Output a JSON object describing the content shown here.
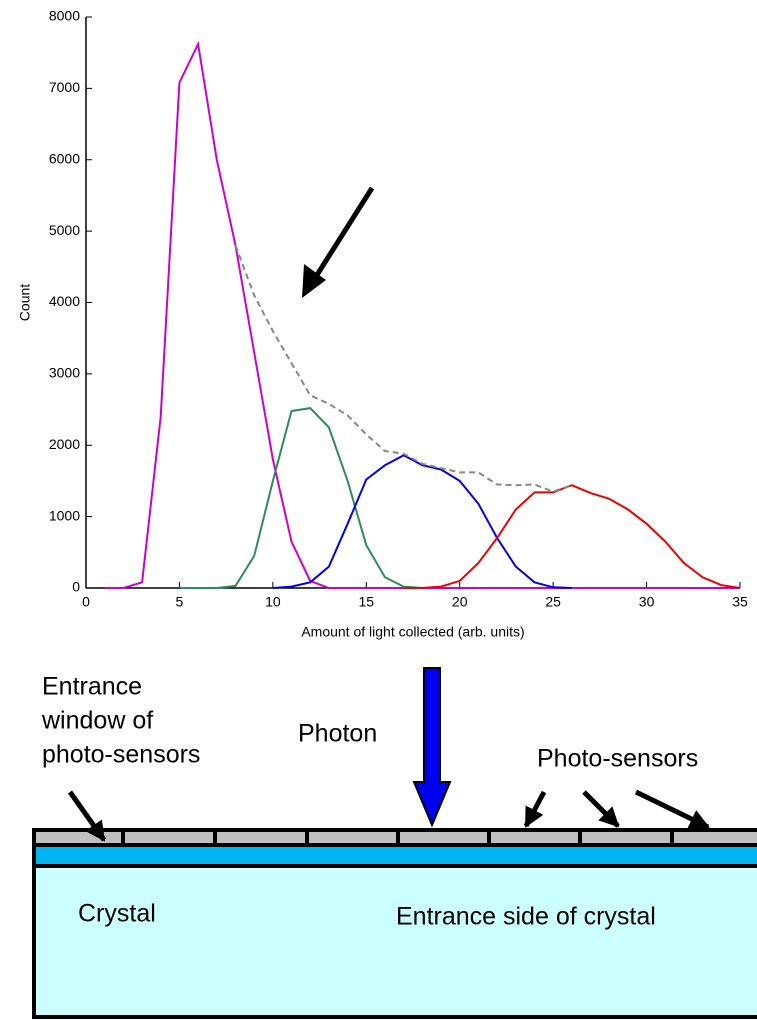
{
  "chart_data": {
    "type": "line",
    "x_label": "Amount of light collected (arb. units)",
    "y_label": "Count",
    "x": [
      1,
      2,
      3,
      4,
      5,
      6,
      7,
      8,
      9,
      10,
      11,
      12,
      13,
      14,
      15,
      16,
      17,
      18,
      19,
      20,
      21,
      22,
      23,
      24,
      25,
      26,
      27,
      28,
      29,
      30,
      31,
      32,
      33,
      34,
      35
    ],
    "series": [
      {
        "color": "#cc00cc",
        "values": [
          0,
          0,
          80,
          2400,
          7080,
          7620,
          6000,
          4800,
          3300,
          1800,
          650,
          100,
          0,
          0,
          0,
          0,
          0,
          0,
          0,
          0,
          0,
          0,
          0,
          0,
          0,
          0,
          0,
          0,
          0,
          0,
          0,
          0,
          0,
          0,
          0
        ]
      },
      {
        "color": "#2e8b57",
        "values": [
          null,
          null,
          null,
          null,
          0,
          0,
          0,
          30,
          450,
          1500,
          2480,
          2520,
          2250,
          1500,
          600,
          150,
          20,
          0,
          null,
          null,
          null,
          null,
          null,
          null,
          null,
          null,
          null,
          null,
          null,
          null,
          null,
          null,
          null,
          null,
          null
        ]
      },
      {
        "color": "#0000ee",
        "values": [
          null,
          null,
          null,
          null,
          null,
          null,
          null,
          null,
          null,
          0,
          20,
          80,
          300,
          900,
          1520,
          1720,
          1860,
          1720,
          1660,
          1500,
          1180,
          700,
          300,
          80,
          10,
          0,
          null,
          null,
          null,
          null,
          null,
          null,
          null,
          null,
          null
        ]
      },
      {
        "color": "#ee0000",
        "values": [
          null,
          null,
          null,
          null,
          null,
          null,
          null,
          null,
          null,
          null,
          null,
          null,
          null,
          null,
          null,
          null,
          0,
          0,
          20,
          100,
          350,
          700,
          1100,
          1340,
          1340,
          1440,
          1330,
          1250,
          1100,
          900,
          650,
          350,
          150,
          40,
          0
        ]
      },
      {
        "color": "#888888",
        "dashed": true,
        "values": [
          null,
          null,
          null,
          null,
          null,
          null,
          null,
          4800,
          4100,
          3600,
          3150,
          2700,
          2580,
          2420,
          2150,
          1920,
          1880,
          1740,
          1680,
          1620,
          1620,
          1450,
          1440,
          1450,
          1350,
          1440,
          null,
          null,
          null,
          null,
          null,
          null,
          null,
          null,
          null
        ]
      }
    ],
    "xlim": [
      0,
      35
    ],
    "xticks": [
      0,
      5,
      10,
      15,
      20,
      25,
      30,
      35
    ],
    "ylim": [
      0,
      8000
    ],
    "yticks": [
      0,
      1000,
      2000,
      3000,
      4000,
      5000,
      6000,
      7000,
      8000
    ]
  },
  "diagram": {
    "window_label": [
      "Entrance",
      "window of",
      "photo-sensors"
    ],
    "photon_label": "Photon",
    "sensors_label": "Photo-sensors",
    "crystal_label": "Crystal",
    "entrance_side_label": "Entrance side of crystal"
  }
}
